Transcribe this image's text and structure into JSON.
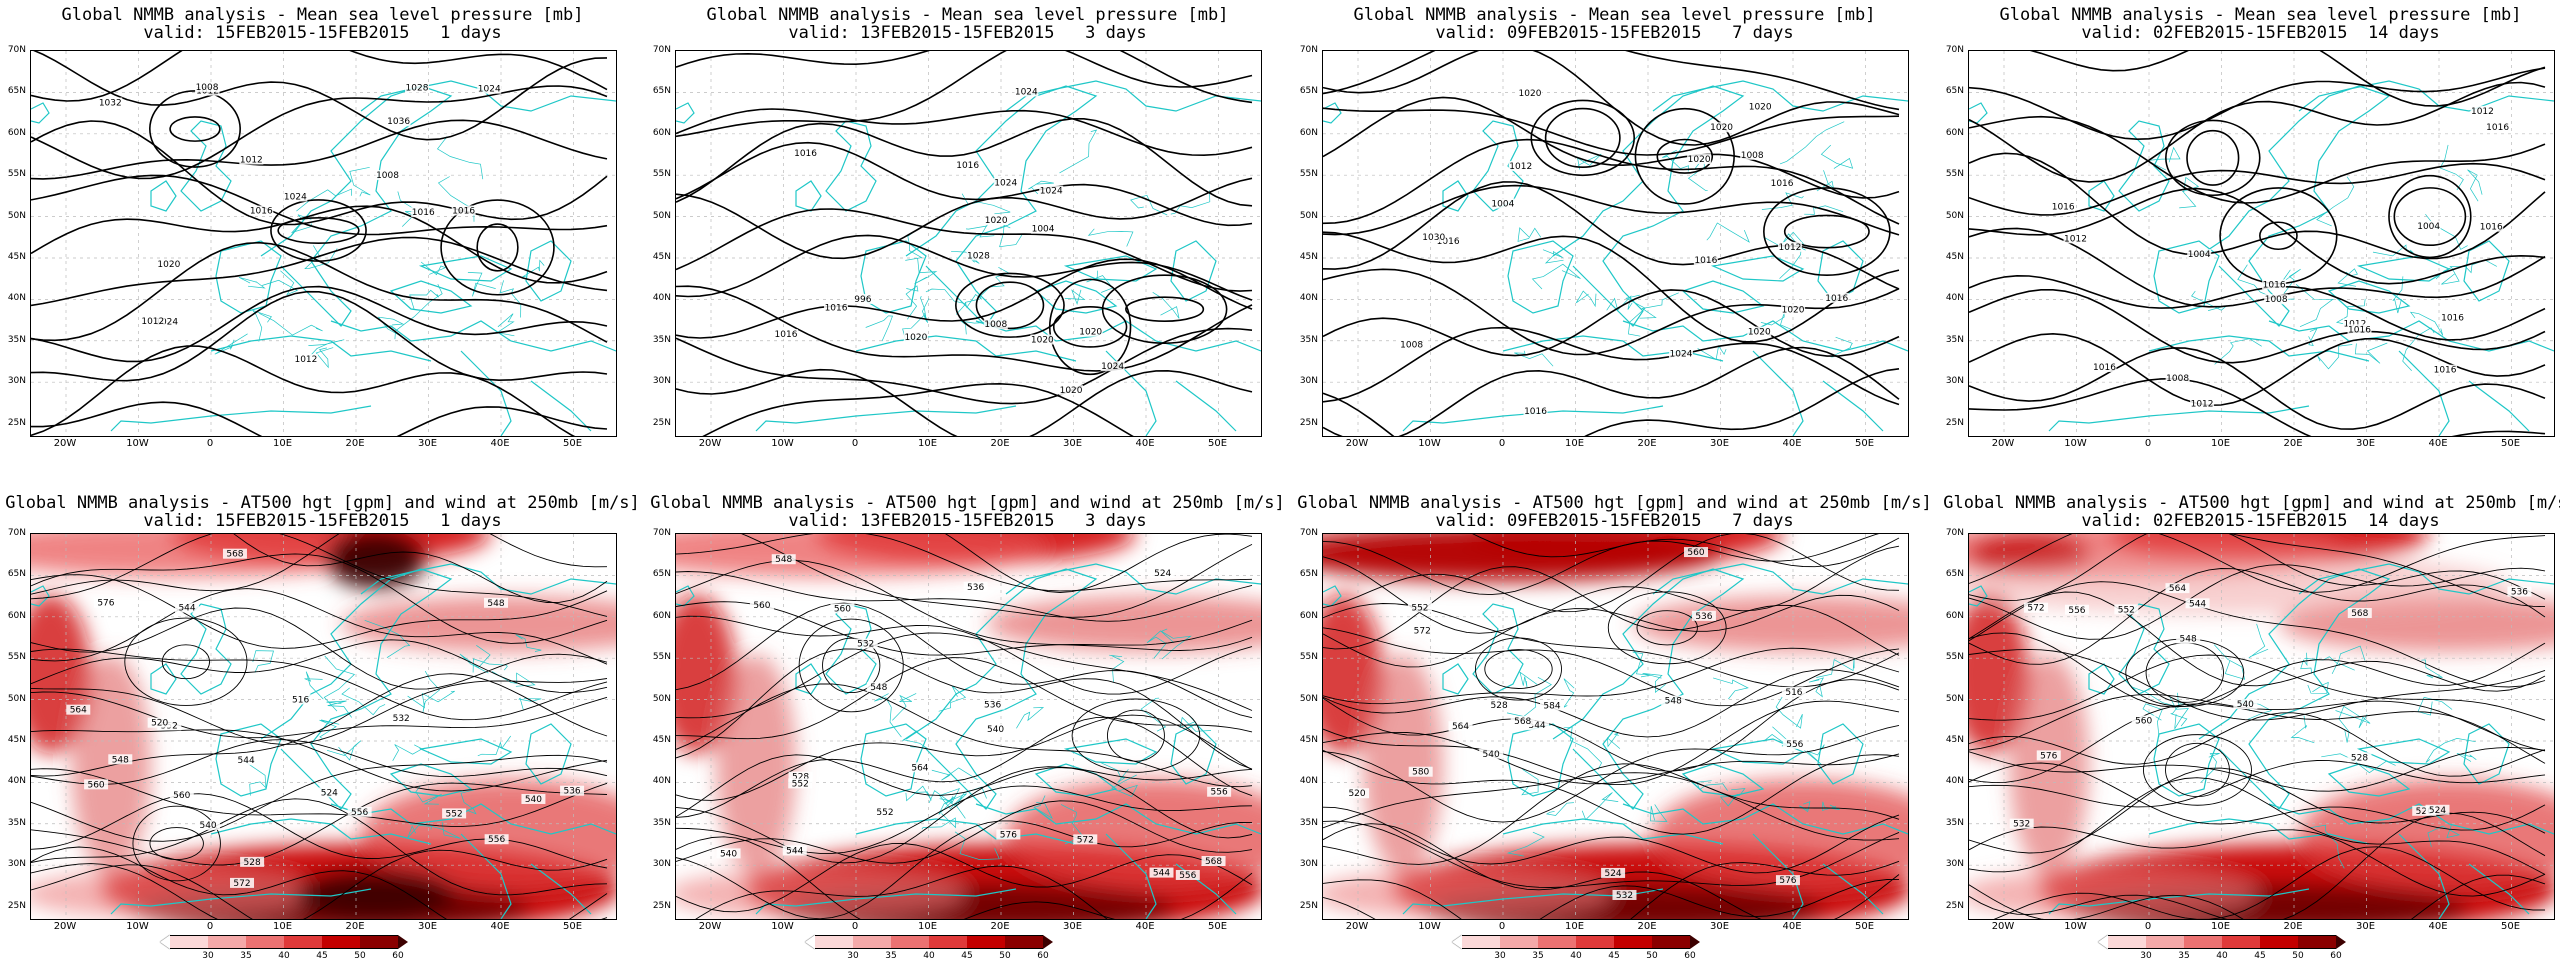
{
  "top_row": [
    {
      "title_line1": "Global NMMB analysis - Mean sea level pressure [mb]",
      "title_line2": "valid: 15FEB2015-15FEB2015   1 days",
      "labels": [
        "1032",
        "1012",
        "1008",
        "1012",
        "1016",
        "1012",
        "1008",
        "1016",
        "1024",
        "1020",
        "1016",
        "1024",
        "1024",
        "1012",
        "1036",
        "1028"
      ]
    },
    {
      "title_line1": "Global NMMB analysis - Mean sea level pressure [mb]",
      "title_line2": "valid: 13FEB2015-15FEB2015   3 days",
      "labels": [
        "1016",
        "1020",
        "996",
        "1004",
        "1008",
        "1016",
        "1020",
        "1020",
        "1024",
        "1028",
        "1024",
        "1016",
        "1024",
        "1020",
        "1024",
        "1016",
        "1020"
      ]
    },
    {
      "title_line1": "Global NMMB analysis - Mean sea level pressure [mb]",
      "title_line2": "valid: 09FEB2015-15FEB2015   7 days",
      "labels": [
        "1004",
        "1008",
        "1012",
        "1016",
        "1020",
        "1020",
        "1020",
        "1020",
        "1016",
        "1012",
        "1008",
        "1016",
        "1020",
        "1024",
        "1016",
        "1016",
        "1020",
        "1030"
      ]
    },
    {
      "title_line1": "Global NMMB analysis - Mean sea level pressure [mb]",
      "title_line2": "valid: 02FEB2015-15FEB2015  14 days",
      "labels": [
        "1004",
        "1008",
        "1008",
        "1016",
        "1016",
        "1016",
        "1012",
        "1004",
        "1012",
        "1012",
        "1016",
        "1016",
        "1016",
        "1016",
        "1016",
        "1012"
      ]
    }
  ],
  "bottom_row": [
    {
      "title_line1": "Global NMMB analysis - AT500 hgt [gpm] and wind at 250mb [m/s]",
      "title_line2": "valid: 15FEB2015-15FEB2015   1 days",
      "labels": [
        "540",
        "544",
        "548",
        "552",
        "556",
        "560",
        "564",
        "568",
        "572",
        "576",
        "536",
        "540",
        "544",
        "548",
        "552",
        "556",
        "560",
        "516",
        "520",
        "524",
        "528",
        "532"
      ]
    },
    {
      "title_line1": "Global NMMB analysis - AT500 hgt [gpm] and wind at 250mb [m/s]",
      "title_line2": "valid: 13FEB2015-15FEB2015   3 days",
      "labels": [
        "524",
        "528",
        "532",
        "536",
        "540",
        "544",
        "548",
        "552",
        "556",
        "560",
        "564",
        "568",
        "572",
        "576",
        "544",
        "548",
        "552",
        "556",
        "560",
        "540",
        "536"
      ]
    },
    {
      "title_line1": "Global NMMB analysis - AT500 hgt [gpm] and wind at 250mb [m/s]",
      "title_line2": "valid: 09FEB2015-15FEB2015   7 days",
      "labels": [
        "516",
        "520",
        "524",
        "528",
        "532",
        "536",
        "540",
        "544",
        "548",
        "552",
        "556",
        "560",
        "564",
        "568",
        "572",
        "576",
        "580",
        "584"
      ]
    },
    {
      "title_line1": "Global NMMB analysis - AT500 hgt [gpm] and wind at 250mb [m/s]",
      "title_line2": "valid: 02FEB2015-15FEB2015  14 days",
      "labels": [
        "520",
        "524",
        "528",
        "532",
        "536",
        "540",
        "544",
        "548",
        "552",
        "556",
        "560",
        "564",
        "568",
        "572",
        "576"
      ]
    }
  ],
  "axes": {
    "lat_ticks": [
      "70N",
      "65N",
      "60N",
      "55N",
      "50N",
      "45N",
      "40N",
      "35N",
      "30N",
      "25N"
    ],
    "lon_ticks": [
      "20W",
      "10W",
      "0",
      "10E",
      "20E",
      "30E",
      "40E",
      "50E"
    ]
  },
  "colorbar": {
    "labels": [
      "30",
      "35",
      "40",
      "45",
      "50",
      "60"
    ],
    "colors": [
      "#ffffff",
      "#fbd8d8",
      "#f4a9a9",
      "#ec7272",
      "#e03a3a",
      "#c40000",
      "#8b0000",
      "#3d0000"
    ]
  },
  "colors": {
    "coast": "#1fc7c7",
    "contour": "#000000",
    "grid": "#bbbbbb"
  }
}
